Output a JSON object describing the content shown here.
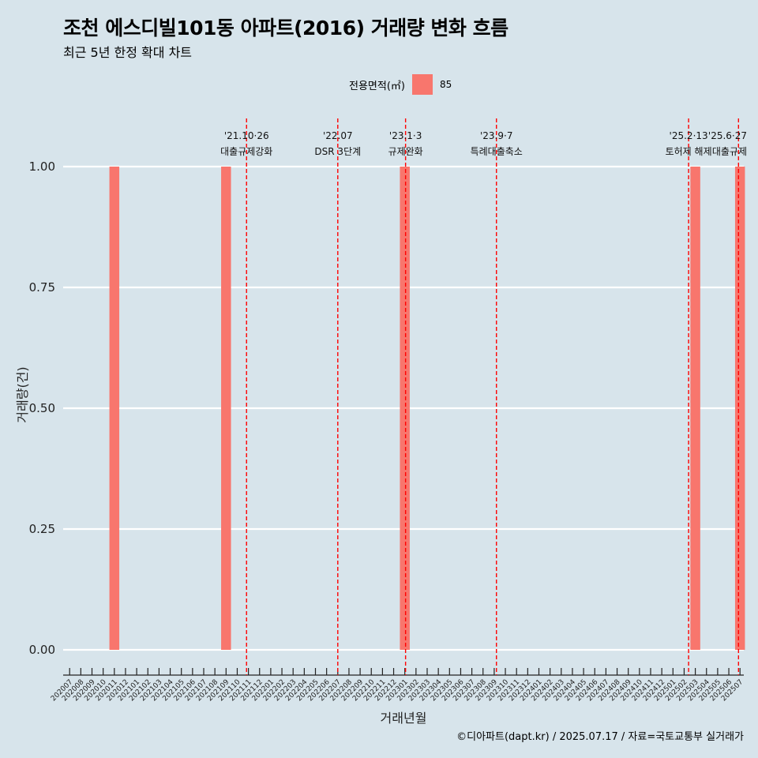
{
  "title": "조천 에스디빌101동 아파트(2016) 거래량 변화 흐름",
  "subtitle": "최근 5년 한정 확대 차트",
  "caption": "©디아파트(dapt.kr) / 2025.07.17 / 자료=국토교통부 실거래가",
  "legend": {
    "title": "전용면적(㎡)",
    "items": [
      {
        "label": "85",
        "color": "#f8766d"
      }
    ]
  },
  "colors": {
    "background": "#d7e4eb",
    "bar": "#f8766d",
    "event_line": "#ff0000",
    "grid": "#ffffff"
  },
  "chart_data": {
    "type": "bar",
    "title": "조천 에스디빌101동 아파트(2016) 거래량 변화 흐름",
    "subtitle": "최근 5년 한정 확대 차트",
    "xlabel": "거래년월",
    "ylabel": "거래량(건)",
    "ylim": [
      0,
      1
    ],
    "yticks": [
      0,
      0.25,
      0.5,
      0.75,
      1
    ],
    "ytick_labels": [
      "0.00",
      "0.25",
      "0.50",
      "0.75",
      "1.00"
    ],
    "grid": true,
    "legend_position": "top",
    "categories": [
      "202007",
      "202008",
      "202009",
      "202010",
      "202011",
      "202012",
      "202101",
      "202102",
      "202103",
      "202104",
      "202105",
      "202106",
      "202107",
      "202108",
      "202109",
      "202110",
      "202111",
      "202112",
      "202201",
      "202202",
      "202203",
      "202204",
      "202205",
      "202206",
      "202207",
      "202208",
      "202209",
      "202210",
      "202211",
      "202212",
      "202301",
      "202302",
      "202303",
      "202304",
      "202305",
      "202306",
      "202307",
      "202308",
      "202309",
      "202310",
      "202311",
      "202312",
      "202401",
      "202402",
      "202403",
      "202404",
      "202405",
      "202406",
      "202407",
      "202408",
      "202409",
      "202410",
      "202411",
      "202412",
      "202501",
      "202502",
      "202503",
      "202504",
      "202505",
      "202506",
      "202507"
    ],
    "series": [
      {
        "name": "85",
        "values": [
          0,
          0,
          0,
          0,
          1,
          0,
          0,
          0,
          0,
          0,
          0,
          0,
          0,
          0,
          1,
          0,
          0,
          0,
          0,
          0,
          0,
          0,
          0,
          0,
          0,
          0,
          0,
          0,
          0,
          0,
          1,
          0,
          0,
          0,
          0,
          0,
          0,
          0,
          0,
          0,
          0,
          0,
          0,
          0,
          0,
          0,
          0,
          0,
          0,
          0,
          0,
          0,
          0,
          0,
          0,
          0,
          1,
          0,
          0,
          0,
          1
        ]
      }
    ],
    "bar_months": [
      "202011",
      "202109",
      "202301",
      "202503",
      "202507"
    ],
    "events": [
      {
        "date_label": "'21.10·26",
        "text": "대출규제강화",
        "month": "202110",
        "day": 26
      },
      {
        "date_label": "'22.07",
        "text": "DSR 3단계",
        "month": "202207",
        "day": 1
      },
      {
        "date_label": "'23.1·3",
        "text": "규제완화",
        "month": "202301",
        "day": 3
      },
      {
        "date_label": "'23.9·7",
        "text": "특례대출축소",
        "month": "202309",
        "day": 7
      },
      {
        "date_label": "'25.2·13",
        "text": "토허제 해제",
        "month": "202502",
        "day": 13
      },
      {
        "date_label": "'25.6·27",
        "text": "대출규제",
        "month": "202506",
        "day": 27
      }
    ]
  }
}
